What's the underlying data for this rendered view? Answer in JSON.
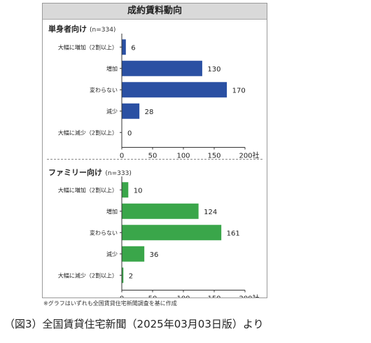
{
  "title": "成約賃料動向",
  "footnote": "※グラフはいずれも全国賃貸住宅新聞調査を基に作成",
  "caption": "（図3）全国賃貸住宅新聞（2025年03月03日版）より",
  "unit": "社",
  "colors": {
    "single": "#2a50a3",
    "family": "#3aa64a",
    "axis": "#333333",
    "title_bg": "#d9d9d9"
  },
  "chart_data": [
    {
      "type": "bar",
      "orientation": "horizontal",
      "title": "単身者向け",
      "count_label": "(n=334)",
      "categories": [
        "大幅に増加（2割以上）",
        "増加",
        "変わらない",
        "減少",
        "大幅に減少（2割以上）"
      ],
      "series": [
        {
          "values": [
            6,
            130,
            170,
            28,
            0
          ]
        }
      ],
      "xlim": [
        0,
        200
      ],
      "xticks": [
        "0",
        "50",
        "100",
        "150",
        "200社"
      ],
      "color": "#2a50a3"
    },
    {
      "type": "bar",
      "orientation": "horizontal",
      "title": "ファミリー向け",
      "count_label": "(n=333)",
      "categories": [
        "大幅に増加（2割以上）",
        "増加",
        "変わらない",
        "減少",
        "大幅に減少（2割以上）"
      ],
      "series": [
        {
          "values": [
            10,
            124,
            161,
            36,
            2
          ]
        }
      ],
      "xlim": [
        0,
        200
      ],
      "xticks": [
        "0",
        "50",
        "100",
        "150",
        "200社"
      ],
      "color": "#3aa64a"
    }
  ]
}
